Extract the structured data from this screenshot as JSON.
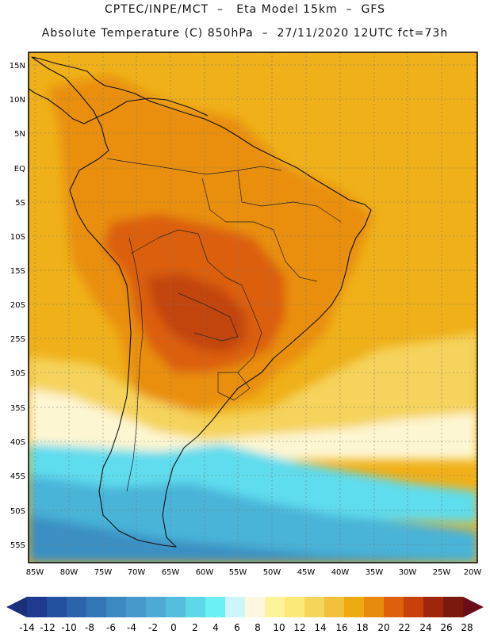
{
  "header": {
    "line1": "CPTEC/INPE/MCT  –   Eta Model 15km  –  GFS",
    "line2": "Absolute Temperature (C) 850hPa  –  27/11/2020 12UTC fct=73h"
  },
  "map": {
    "lat_labels": [
      "15N",
      "10N",
      "5N",
      "EQ",
      "5S",
      "10S",
      "15S",
      "20S",
      "25S",
      "30S",
      "35S",
      "40S",
      "45S",
      "50S",
      "55S"
    ],
    "lon_labels": [
      "85W",
      "80W",
      "75W",
      "70W",
      "65W",
      "60W",
      "55W",
      "50W",
      "45W",
      "40W",
      "35W",
      "30W",
      "25W",
      "20W"
    ]
  },
  "colorbar": {
    "labels": [
      "-14",
      "-12",
      "-10",
      "-8",
      "-6",
      "-4",
      "-2",
      "0",
      "2",
      "4",
      "6",
      "8",
      "10",
      "12",
      "14",
      "16",
      "18",
      "20",
      "22",
      "24",
      "26",
      "28"
    ],
    "colors": [
      "#1f3a8f",
      "#24519f",
      "#2b64ab",
      "#3276b6",
      "#3c88c1",
      "#4699cb",
      "#4eaad4",
      "#55bedf",
      "#5cd8ea",
      "#6af0f4",
      "#cdf6fb",
      "#fdf7df",
      "#fdf39a",
      "#fbe979",
      "#f6d65a",
      "#f2c03c",
      "#eeaa12",
      "#e88a0d",
      "#de600c",
      "#c8400a",
      "#a0260b",
      "#7a1a0e"
    ]
  },
  "field_colors": {
    "ocean_warm": "#efb019",
    "land_warm": "#e98f0e",
    "interior_hot": "#dc5f10",
    "core_hot": "#c2450e",
    "south_yellow": "#f5d35b",
    "pale": "#fdf6d2",
    "cyan": "#5fdced",
    "mid_blue": "#4ab3d8",
    "deep_blue": "#3a8fc2"
  }
}
